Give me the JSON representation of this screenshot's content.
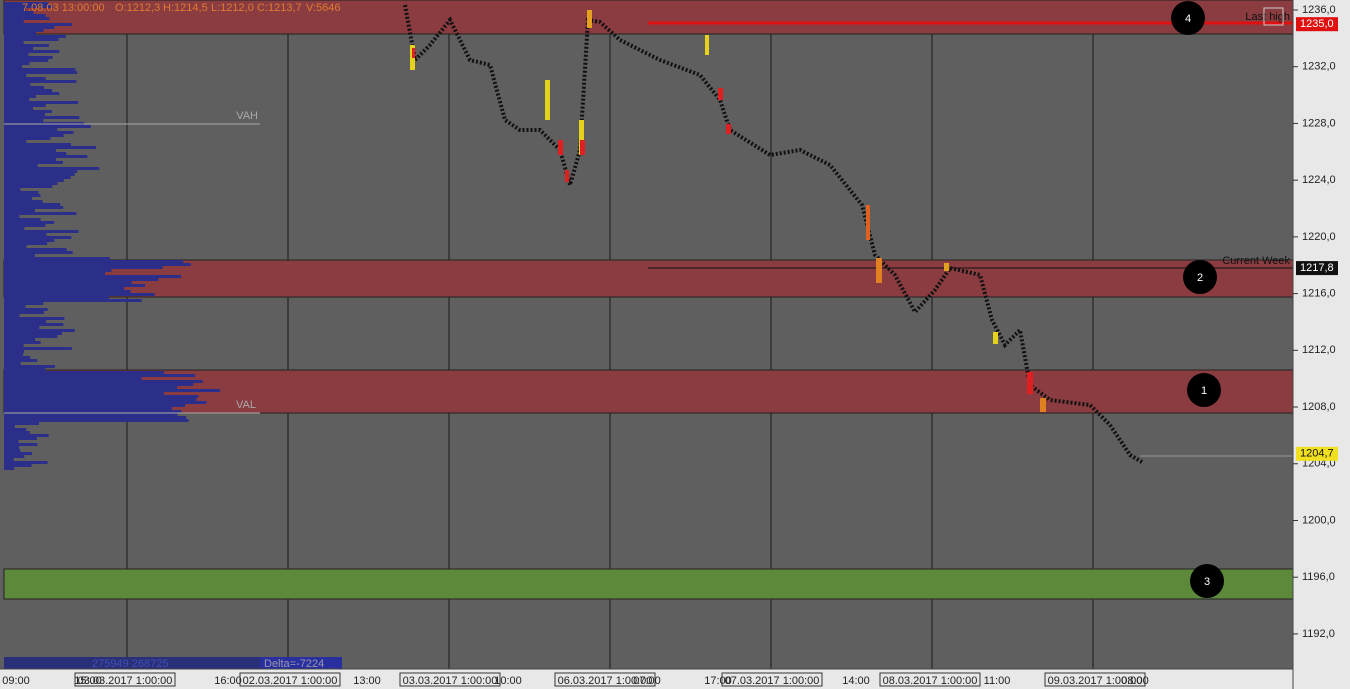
{
  "header": {
    "date": "7.08.03 13:00:00",
    "open": "O:1212,3",
    "high": "H:1214,5",
    "low": "L:1212,0",
    "close": "C:1213,7",
    "volume": "V:5646"
  },
  "price_axis": [
    {
      "value": 1236,
      "label": "1236,0"
    },
    {
      "value": 1232,
      "label": "1232,0"
    },
    {
      "value": 1228,
      "label": "1228,0"
    },
    {
      "value": 1224,
      "label": "1224,0"
    },
    {
      "value": 1220,
      "label": "1220,0"
    },
    {
      "value": 1216,
      "label": "1216,0"
    },
    {
      "value": 1212,
      "label": "1212,0"
    },
    {
      "value": 1208,
      "label": "1208,0"
    },
    {
      "value": 1204,
      "label": "1204,0"
    },
    {
      "value": 1200,
      "label": "1200,0"
    },
    {
      "value": 1196,
      "label": "1196,0"
    },
    {
      "value": 1192,
      "label": "1192,0"
    }
  ],
  "price_badges": [
    {
      "value": 1235,
      "label": "1235,0"
    },
    {
      "value": 1217.8,
      "label": "1217,8"
    },
    {
      "value": 1204.7,
      "label": "1204,7"
    }
  ],
  "level_labels": {
    "vah": "VAH",
    "val": "VAL",
    "current_week": "Current Week",
    "last_high": "Last high"
  },
  "markers": [
    "1",
    "2",
    "3",
    "4"
  ],
  "volume_info": {
    "totals": "275949 268725",
    "delta": "Delta=-7224"
  },
  "time_axis": [
    "09:00",
    "15:00",
    "03.03.2017 1:00:00",
    "16:00",
    "02.03.2017 1:00:00",
    "13:00",
    "03.03.2017 1:00:00",
    "10:00",
    "06.03.2017 1:00:00",
    "07:00",
    "17:00",
    "07.03.2017 1:00:00",
    "14:00",
    "08.03.2017 1:00:00",
    "11:00",
    "09.03.2017 1:00:00",
    "08:00"
  ]
}
